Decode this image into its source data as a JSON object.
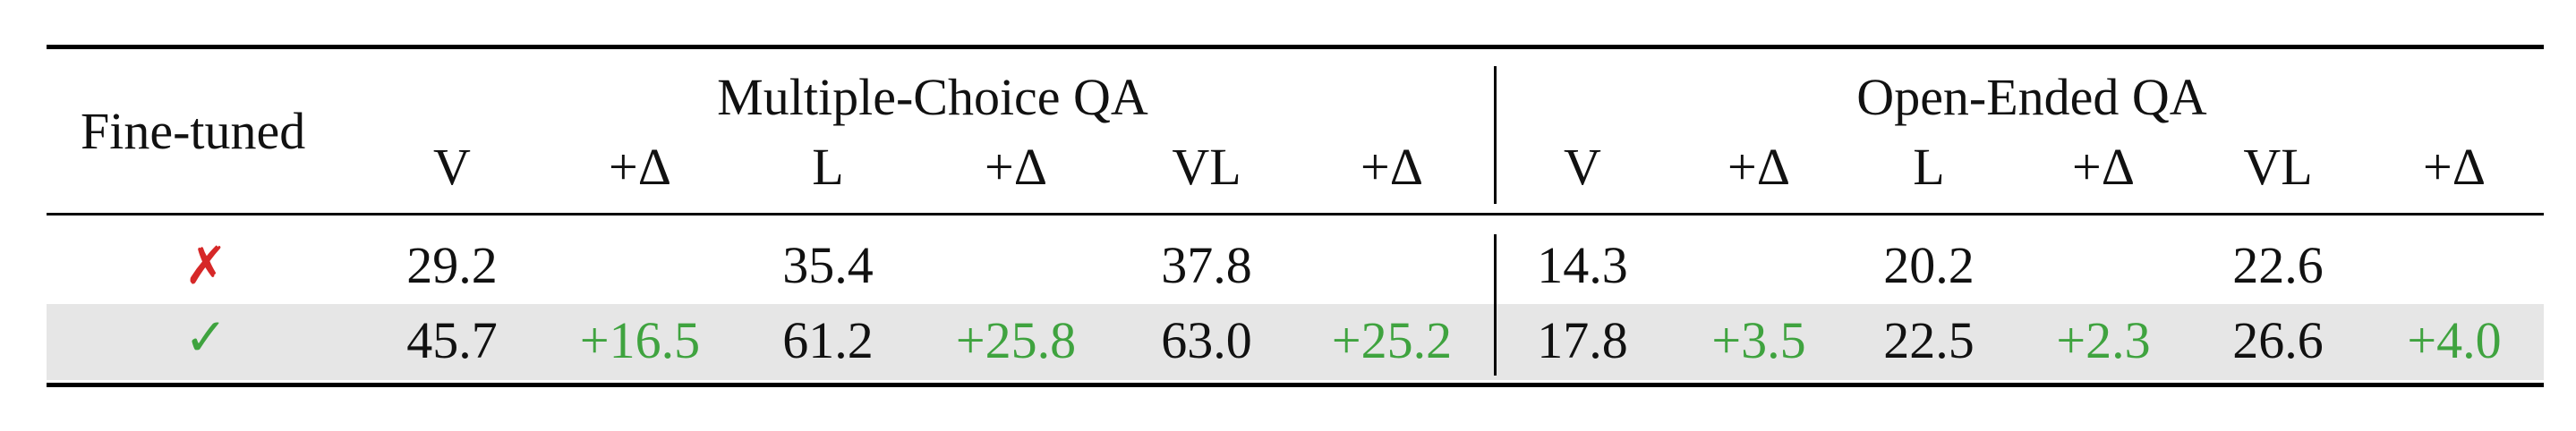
{
  "header": {
    "row_label": "Fine-tuned",
    "group_mc": "Multiple-Choice QA",
    "group_oe": "Open-Ended QA",
    "columns": [
      "V",
      "+Δ",
      "L",
      "+Δ",
      "VL",
      "+Δ",
      "V",
      "+Δ",
      "L",
      "+Δ",
      "VL",
      "+Δ"
    ]
  },
  "rows": [
    {
      "finetuned": "✗",
      "values": [
        "29.2",
        "",
        "35.4",
        "",
        "37.8",
        "",
        "14.3",
        "",
        "20.2",
        "",
        "22.6",
        ""
      ]
    },
    {
      "finetuned": "✓",
      "values": [
        "45.7",
        "+16.5",
        "61.2",
        "+25.8",
        "63.0",
        "+25.2",
        "17.8",
        "+3.5",
        "22.5",
        "+2.3",
        "26.6",
        "+4.0"
      ]
    }
  ],
  "colors": {
    "delta": "#3fa33f",
    "cross": "#d62828",
    "check": "#3fa33f",
    "highlight_row": "#e6e6e6"
  }
}
